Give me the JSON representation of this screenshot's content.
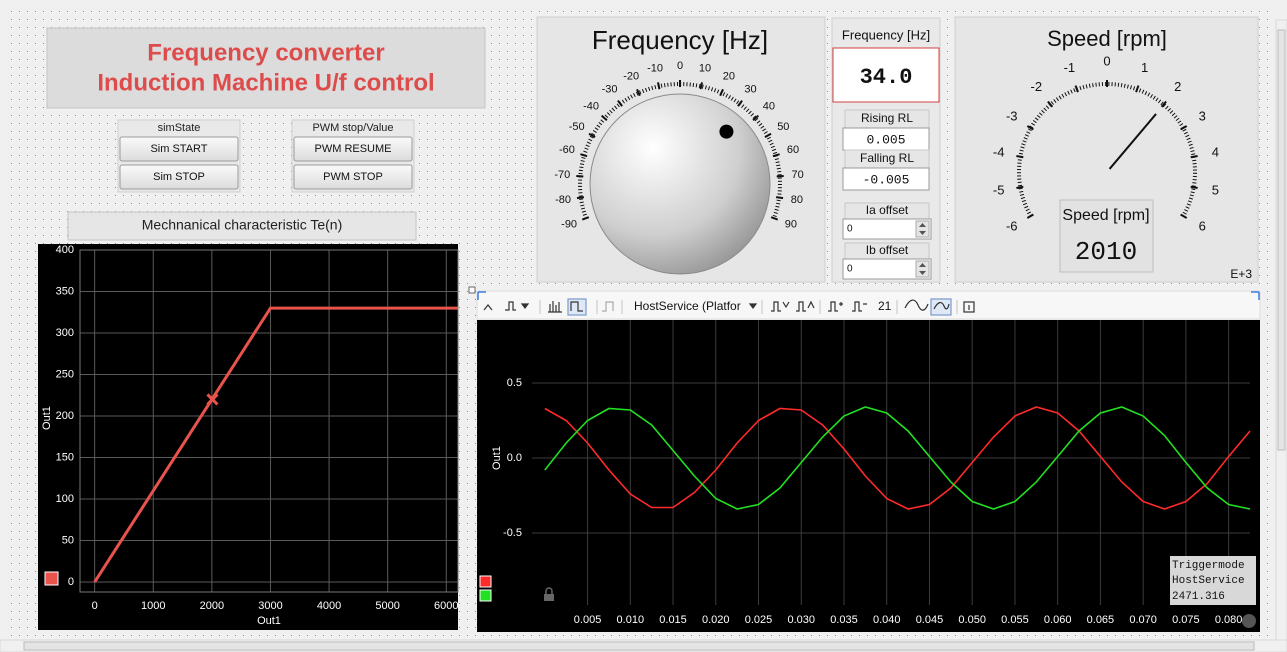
{
  "title_lines": [
    "Frequency converter",
    "Induction Machine U/f control"
  ],
  "controls": {
    "sim_state": {
      "label": "simState",
      "buttons": [
        "Sim START",
        "Sim STOP"
      ]
    },
    "pwm": {
      "label": "PWM stop/Value",
      "buttons": [
        "PWM RESUME",
        "PWM STOP"
      ]
    }
  },
  "frequency": {
    "title": "Frequency [Hz]",
    "display_label": "Frequency [Hz]",
    "value": 34,
    "value_label": "34.0",
    "ticks": [
      -90,
      -80,
      -70,
      -60,
      -50,
      -40,
      -30,
      -20,
      -10,
      0,
      10,
      20,
      30,
      40,
      50,
      60,
      70,
      80,
      90
    ],
    "range": [
      -90,
      90
    ]
  },
  "ramp": {
    "rising_label": "Rising RL",
    "rising": 0.005,
    "falling_label": "Falling RL",
    "falling": -0.005
  },
  "offsets": {
    "ia_label": "Ia offset",
    "ia": 0,
    "ib_label": "Ib offset",
    "ib": 0
  },
  "speed": {
    "title": "Speed [rpm]",
    "display_label": "Speed [rpm]",
    "value": 2010,
    "exponent_label": "E+3",
    "range": [
      -6000,
      6000
    ],
    "ticks": [
      {
        "value": -6000,
        "label": "-6"
      },
      {
        "value": -5000,
        "label": "-5"
      },
      {
        "value": -4000,
        "label": "-4"
      },
      {
        "value": -3000,
        "label": "-3"
      },
      {
        "value": -2000,
        "label": "-2"
      },
      {
        "value": -1000,
        "label": "-1"
      },
      {
        "value": 0,
        "label": "0"
      },
      {
        "value": 1000,
        "label": "1"
      },
      {
        "value": 2000,
        "label": "2"
      },
      {
        "value": 3000,
        "label": "3"
      },
      {
        "value": 4000,
        "label": "4"
      },
      {
        "value": 5000,
        "label": "5"
      },
      {
        "value": 6000,
        "label": "6"
      }
    ]
  },
  "mech_chart": {
    "type": "line",
    "title": "Mechnanical characteristic Te(n)",
    "color": "#e8534c",
    "x": [
      0,
      3000,
      6200
    ],
    "values": [
      0,
      330,
      330
    ],
    "marker": {
      "x": 2010,
      "y": 220
    },
    "xlabel": "Out1",
    "ylabel": "Out1",
    "xlim": [
      -250,
      6200
    ],
    "ylim": [
      -12,
      400
    ],
    "xticks": [
      0,
      1000,
      2000,
      3000,
      4000,
      5000,
      6000
    ],
    "yticks": [
      0,
      50,
      100,
      150,
      200,
      250,
      300,
      350,
      400
    ]
  },
  "scope": {
    "type": "line",
    "toolbar": {
      "source": "HostService (Platfor",
      "count": 21
    },
    "ylabel": "Out1",
    "x": [
      0,
      0.0025,
      0.005,
      0.0075,
      0.01,
      0.0125,
      0.015,
      0.0175,
      0.02,
      0.0225,
      0.025,
      0.0275,
      0.03,
      0.0325,
      0.035,
      0.0375,
      0.04,
      0.0425,
      0.045,
      0.0475,
      0.05,
      0.0525,
      0.055,
      0.0575,
      0.06,
      0.0625,
      0.065,
      0.0675,
      0.07,
      0.0725,
      0.075,
      0.0775,
      0.08,
      0.0825
    ],
    "series": [
      {
        "color": "#ff2a2a",
        "values": [
          0.33,
          0.25,
          0.1,
          -0.08,
          -0.24,
          -0.33,
          -0.33,
          -0.23,
          -0.08,
          0.1,
          0.25,
          0.33,
          0.32,
          0.22,
          0.06,
          -0.12,
          -0.27,
          -0.34,
          -0.31,
          -0.2,
          -0.03,
          0.14,
          0.28,
          0.34,
          0.3,
          0.18,
          0.01,
          -0.16,
          -0.29,
          -0.34,
          -0.29,
          -0.17,
          0.01,
          0.18
        ]
      },
      {
        "color": "#22e022",
        "values": [
          -0.08,
          0.1,
          0.25,
          0.33,
          0.32,
          0.22,
          0.05,
          -0.12,
          -0.27,
          -0.34,
          -0.31,
          -0.2,
          -0.03,
          0.14,
          0.28,
          0.34,
          0.3,
          0.18,
          0.01,
          -0.16,
          -0.29,
          -0.34,
          -0.29,
          -0.16,
          0.01,
          0.18,
          0.3,
          0.34,
          0.28,
          0.15,
          -0.03,
          -0.2,
          -0.31,
          -0.34
        ]
      }
    ],
    "xlim": [
      -0.0015,
      0.0825
    ],
    "ylim": [
      -0.98,
      0.92
    ],
    "xticks": [
      0.005,
      {
        "value": 0.01,
        "label": "0.010"
      },
      0.015,
      {
        "value": 0.02,
        "label": "0.020"
      },
      0.025,
      {
        "value": 0.03,
        "label": "0.030"
      },
      0.035,
      {
        "value": 0.04,
        "label": "0.040"
      },
      0.045,
      {
        "value": 0.05,
        "label": "0.050"
      },
      0.055,
      {
        "value": 0.06,
        "label": "0.060"
      },
      0.065,
      {
        "value": 0.07,
        "label": "0.070"
      },
      0.075,
      {
        "value": 0.08,
        "label": "0.080"
      }
    ],
    "yticks": [
      0.5,
      {
        "value": 0,
        "label": "0.0"
      },
      -0.5
    ],
    "trigger": {
      "mode_label": "Triggermode",
      "source": "HostService",
      "time": 2471.316
    }
  }
}
